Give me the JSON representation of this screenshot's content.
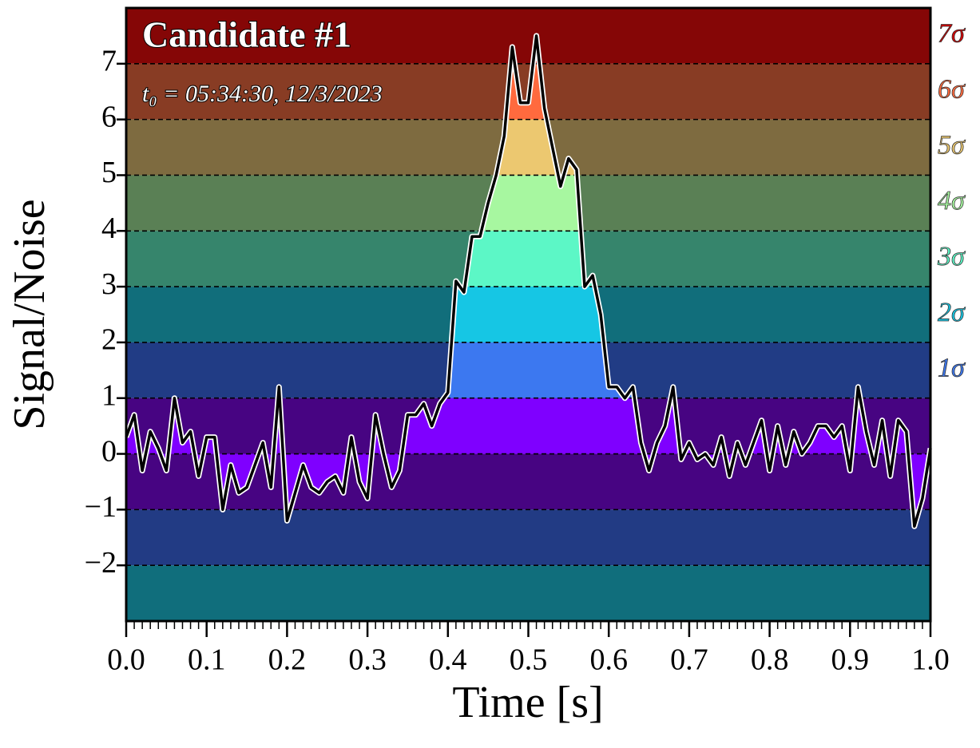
{
  "chart_data": {
    "type": "line",
    "title": "Candidate #1",
    "subtitle": "t₀ = 05:34:30, 12/3/2023",
    "xlabel": "Time [s]",
    "ylabel": "Signal/Noise",
    "xlim": [
      0,
      1
    ],
    "ylim": [
      -3,
      8
    ],
    "xticks": [
      {
        "value": 0,
        "label": "0.0"
      },
      0.1,
      0.2,
      0.3,
      0.4,
      0.5,
      0.6,
      0.7,
      0.8,
      0.9,
      {
        "value": 1,
        "label": "1.0"
      }
    ],
    "yticks": [
      {
        "value": -2,
        "label": "−2"
      },
      {
        "value": -1,
        "label": "−1"
      },
      0,
      1,
      2,
      3,
      4,
      5,
      6,
      7
    ],
    "grid": true,
    "bands": [
      {
        "from": 7,
        "to": 8,
        "color": "#850606",
        "fill": "#d40000"
      },
      {
        "from": 6,
        "to": 7,
        "color": "#883c24",
        "fill": "#ff6a3e",
        "label": "6σ"
      },
      {
        "from": 5,
        "to": 6,
        "color": "#7e6b40",
        "fill": "#ecc870",
        "label": "5σ"
      },
      {
        "from": 4,
        "to": 5,
        "color": "#5a8055",
        "fill": "#a7f7a0",
        "label": "4σ"
      },
      {
        "from": 3,
        "to": 4,
        "color": "#36856c",
        "fill": "#5cf7c6",
        "label": "3σ"
      },
      {
        "from": 2,
        "to": 3,
        "color": "#116e7b",
        "fill": "#16c6e4",
        "label": "2σ"
      },
      {
        "from": 1,
        "to": 2,
        "color": "#213c85",
        "fill": "#3c78f0",
        "label": "1σ"
      },
      {
        "from": 0,
        "to": 1,
        "color": "#470482",
        "fill": "#7f00ff"
      },
      {
        "from": -1,
        "to": 0,
        "color": "#470482",
        "fill": "#7f00ff"
      },
      {
        "from": -2,
        "to": -1,
        "color": "#223b84",
        "fill": "#3c78f0"
      },
      {
        "from": -3,
        "to": -2,
        "color": "#106e7c",
        "fill": "#16c6e4"
      }
    ],
    "top_label": "7σ",
    "series": [
      {
        "name": "S/N",
        "color": "#000000",
        "x": [
          0,
          0.01,
          0.02,
          0.03,
          0.04,
          0.05,
          0.06,
          0.07,
          0.08,
          0.09,
          0.1,
          0.11,
          0.12,
          0.13,
          0.14,
          0.15,
          0.16,
          0.17,
          0.18,
          0.19,
          0.2,
          0.21,
          0.22,
          0.23,
          0.24,
          0.25,
          0.26,
          0.27,
          0.28,
          0.29,
          0.3,
          0.31,
          0.32,
          0.33,
          0.34,
          0.35,
          0.36,
          0.37,
          0.38,
          0.39,
          0.4,
          0.41,
          0.42,
          0.43,
          0.44,
          0.45,
          0.46,
          0.47,
          0.48,
          0.49,
          0.5,
          0.51,
          0.52,
          0.53,
          0.54,
          0.55,
          0.56,
          0.57,
          0.58,
          0.59,
          0.6,
          0.61,
          0.62,
          0.63,
          0.64,
          0.65,
          0.66,
          0.67,
          0.68,
          0.69,
          0.7,
          0.71,
          0.72,
          0.73,
          0.74,
          0.75,
          0.76,
          0.77,
          0.78,
          0.79,
          0.8,
          0.81,
          0.82,
          0.83,
          0.84,
          0.85,
          0.86,
          0.87,
          0.88,
          0.89,
          0.9,
          0.91,
          0.92,
          0.93,
          0.94,
          0.95,
          0.96,
          0.97,
          0.98,
          0.99,
          1
        ],
        "values": [
          0.3,
          0.7,
          -0.3,
          0.4,
          0.1,
          -0.3,
          1.0,
          0.2,
          0.4,
          -0.4,
          0.3,
          0.3,
          -1.0,
          -0.2,
          -0.7,
          -0.6,
          -0.2,
          0.2,
          -0.6,
          1.2,
          -1.2,
          -0.7,
          -0.2,
          -0.6,
          -0.7,
          -0.5,
          -0.4,
          -0.7,
          0.3,
          -0.5,
          -0.8,
          0.7,
          0.0,
          -0.6,
          -0.3,
          0.7,
          0.7,
          0.9,
          0.5,
          0.9,
          1.1,
          3.1,
          2.9,
          3.9,
          3.9,
          4.5,
          5.0,
          5.7,
          7.3,
          6.3,
          6.3,
          7.5,
          6.2,
          5.5,
          4.8,
          5.3,
          5.1,
          3.0,
          3.2,
          2.5,
          1.2,
          1.2,
          1.0,
          1.2,
          0.2,
          -0.3,
          0.2,
          0.5,
          1.2,
          -0.1,
          0.2,
          -0.1,
          0.0,
          -0.2,
          0.3,
          -0.4,
          0.2,
          -0.2,
          0.2,
          0.6,
          -0.3,
          0.5,
          -0.2,
          0.4,
          0.0,
          0.2,
          0.5,
          0.5,
          0.3,
          0.5,
          -0.3,
          1.2,
          0.4,
          -0.2,
          0.6,
          -0.4,
          0.6,
          0.4,
          -1.3,
          -0.8,
          0.1
        ]
      }
    ]
  }
}
